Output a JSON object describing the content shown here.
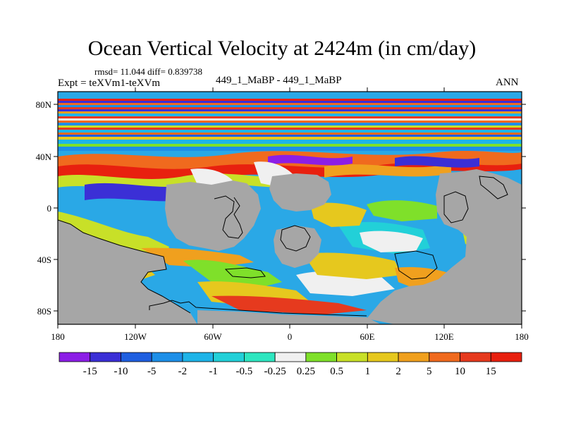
{
  "title": "Ocean Vertical Velocity at 2424m (in cm/day)",
  "stats_label": "rmsd= 11.044 diff= 0.839738",
  "expt_label": "Expt = teXVm1-teXVm",
  "case_label": "449_1_MaBP - 449_1_MaBP",
  "season_label": "ANN",
  "lat_ticks": [
    "80N",
    "40N",
    "0",
    "40S",
    "80S"
  ],
  "lon_ticks": [
    "180",
    "120W",
    "60W",
    "0",
    "60E",
    "120E",
    "180"
  ],
  "colorbar": {
    "labels": [
      "-15",
      "-10",
      "-5",
      "-2",
      "-1",
      "-0.5",
      "-0.25",
      "0.25",
      "0.5",
      "1",
      "2",
      "5",
      "10",
      "15"
    ],
    "colors": [
      "#8c1ee6",
      "#3b2fd6",
      "#1f5fe0",
      "#1d8fe8",
      "#1eb4e8",
      "#22d0d8",
      "#2ee6c0",
      "#f0f0f0",
      "#7fe02a",
      "#c8e028",
      "#e6c81e",
      "#f0a01e",
      "#f06a1e",
      "#e63a1e",
      "#e8200f"
    ]
  },
  "land_color": "#a6a6a6"
}
